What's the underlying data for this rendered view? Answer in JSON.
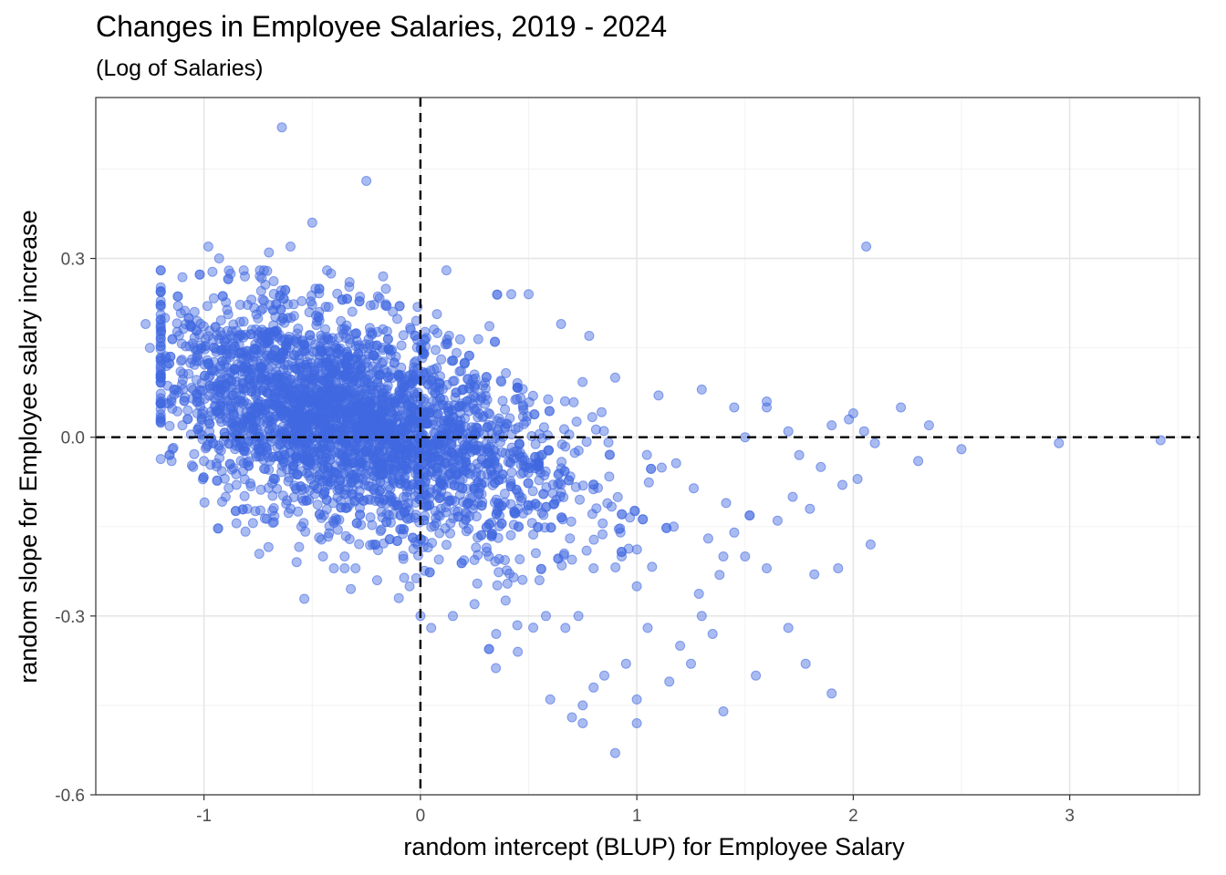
{
  "chart_data": {
    "type": "scatter",
    "title": "Changes in Employee Salaries, 2019 - 2024",
    "subtitle": "(Log of Salaries)",
    "xlabel": "random intercept (BLUP) for Employee Salary",
    "ylabel": "random slope for Employee salary increase",
    "xlim": [
      -1.5,
      3.6
    ],
    "ylim": [
      -0.6,
      0.57
    ],
    "x_ticks": [
      -1,
      0,
      1,
      2,
      3
    ],
    "x_tick_labels": [
      "-1",
      "0",
      "1",
      "2",
      "3"
    ],
    "y_ticks": [
      -0.6,
      -0.3,
      0.0,
      0.3
    ],
    "y_tick_labels": [
      "-0.6",
      "-0.3",
      "0.0",
      "0.3"
    ],
    "grid": true,
    "reference_lines": [
      {
        "axis": "x",
        "value": 0
      },
      {
        "axis": "y",
        "value": 0
      }
    ],
    "point_color": "#4169E1",
    "point_opacity": 0.45,
    "series": [
      {
        "x": [
          -0.64,
          -0.25,
          -0.5,
          -0.98,
          -0.93,
          -0.6,
          -0.7,
          0.12,
          0.42,
          0.5,
          0.65,
          0.78,
          -1.27,
          -1.25,
          -1.18,
          -1.12,
          -1.15,
          -1.05,
          -1.0,
          -0.55,
          -0.45,
          -0.35,
          -0.2,
          0.0,
          -0.1,
          -0.3,
          -0.8,
          -0.85,
          0.9,
          1.1,
          1.3,
          1.45,
          1.6,
          1.7,
          1.75,
          1.85,
          1.9,
          1.98,
          2.0,
          2.05,
          2.1,
          2.22,
          2.3,
          2.35,
          2.5,
          2.95,
          3.42,
          2.06,
          2.08,
          1.9,
          1.78,
          1.7,
          1.55,
          1.4,
          1.5,
          1.3,
          1.2,
          1.0,
          0.9,
          0.75,
          0.6,
          0.8,
          0.7,
          0.75,
          0.85,
          0.95,
          1.0,
          1.05,
          1.15,
          1.25,
          1.35,
          1.45,
          1.65,
          1.72,
          1.8,
          1.95,
          2.02,
          1.93,
          1.82,
          1.6,
          1.4,
          1.33,
          1.17,
          1.0,
          0.93,
          0.8,
          0.73,
          0.67,
          0.58,
          0.55,
          0.45,
          0.35,
          0.25,
          0.15,
          0.05,
          -0.05,
          -0.22,
          -0.4,
          -0.35,
          -0.6,
          -0.9,
          -1.05,
          -1.1,
          -1.2,
          1.6,
          1.5
        ],
        "y": [
          0.52,
          0.43,
          0.36,
          0.32,
          0.3,
          0.32,
          0.31,
          0.28,
          0.24,
          0.24,
          0.19,
          0.17,
          0.19,
          0.15,
          0.2,
          0.22,
          0.06,
          0.08,
          -0.04,
          -0.15,
          -0.2,
          -0.22,
          -0.24,
          -0.3,
          -0.27,
          -0.22,
          -0.12,
          -0.08,
          0.1,
          0.07,
          0.08,
          0.05,
          0.05,
          0.01,
          -0.03,
          -0.05,
          0.02,
          0.03,
          0.04,
          0.01,
          -0.01,
          0.05,
          -0.04,
          0.02,
          -0.02,
          -0.01,
          -0.005,
          0.32,
          -0.18,
          -0.43,
          -0.38,
          -0.32,
          -0.4,
          -0.46,
          -0.2,
          -0.3,
          -0.35,
          -0.48,
          -0.53,
          -0.48,
          -0.44,
          -0.42,
          -0.47,
          -0.45,
          -0.4,
          -0.38,
          -0.44,
          -0.32,
          -0.41,
          -0.38,
          -0.33,
          -0.16,
          -0.14,
          -0.1,
          -0.12,
          -0.08,
          -0.07,
          -0.22,
          -0.23,
          -0.22,
          -0.2,
          -0.17,
          -0.15,
          -0.25,
          -0.2,
          -0.22,
          -0.3,
          -0.32,
          -0.3,
          -0.24,
          -0.36,
          -0.33,
          -0.28,
          -0.3,
          -0.32,
          -0.25,
          -0.18,
          -0.22,
          -0.2,
          -0.12,
          -0.1,
          -0.05,
          0.02,
          0.1,
          0.06,
          0.0
        ]
      }
    ]
  }
}
